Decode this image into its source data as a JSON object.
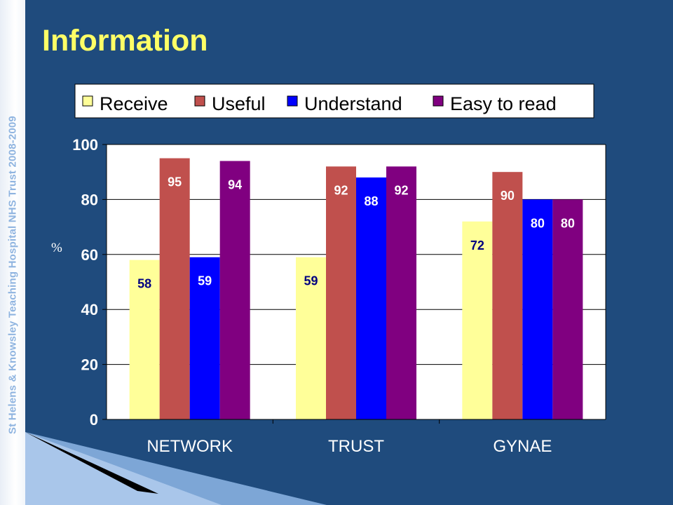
{
  "page": {
    "title": "Information",
    "side_text": "St Helens & Knowsley Teaching Hospital NHS Trust  2008-2009"
  },
  "chart_data": {
    "type": "bar",
    "title": "",
    "xlabel": "",
    "ylabel": "%",
    "ylim": [
      0,
      100
    ],
    "yticks": [
      0,
      20,
      40,
      60,
      80,
      100
    ],
    "grid": true,
    "legend_position": "top",
    "categories": [
      "NETWORK",
      "TRUST",
      "GYNAE"
    ],
    "series": [
      {
        "name": "Receive",
        "color": "#ffff99",
        "label_color": "#000080",
        "values": [
          58,
          59,
          72
        ]
      },
      {
        "name": "Useful",
        "color": "#c0504d",
        "label_color": "#ffffff",
        "values": [
          95,
          92,
          90
        ]
      },
      {
        "name": "Understand",
        "color": "#0000ff",
        "label_color": "#ffffff",
        "values": [
          59,
          88,
          80
        ]
      },
      {
        "name": "Easy to read",
        "color": "#800080",
        "label_color": "#ffffff",
        "values": [
          94,
          92,
          80
        ]
      }
    ]
  }
}
